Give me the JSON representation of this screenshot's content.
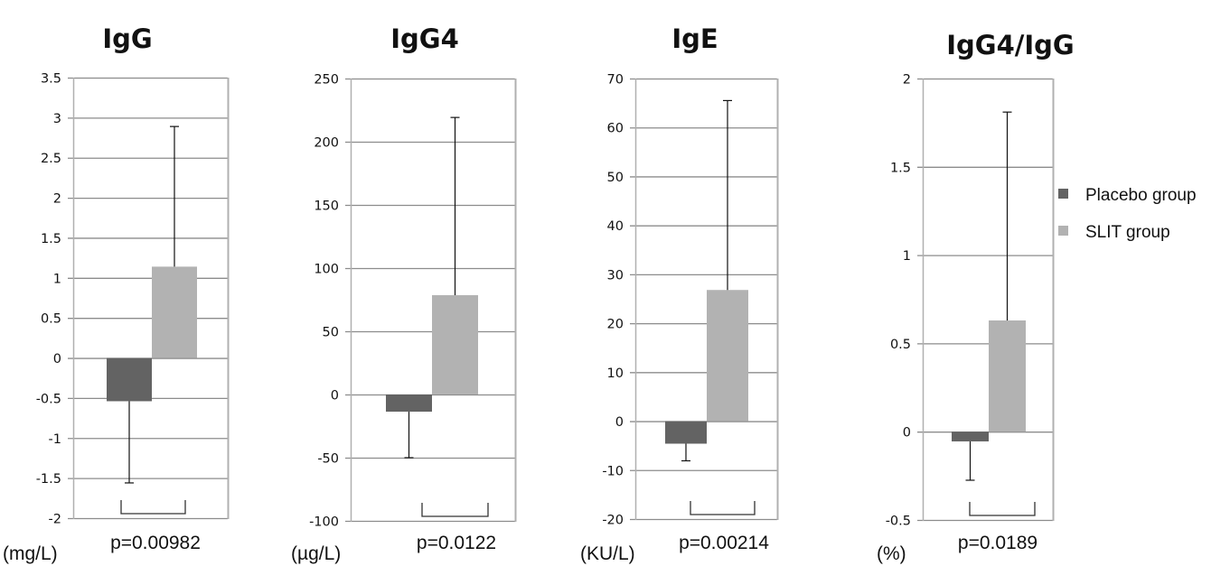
{
  "chart_data": [
    {
      "type": "bar",
      "title": "IgG",
      "unit_label": "(mg/L)",
      "p_value_label": "p=0.00982",
      "ylim": [
        -2,
        3.5
      ],
      "ytick_step": 0.5,
      "yticks": [
        "3.5",
        "3",
        "2.5",
        "2",
        "1.5",
        "1",
        "0.5",
        "0",
        "-0.5",
        "-1",
        "-1.5",
        "-2"
      ],
      "grid": true,
      "series": [
        {
          "name": "Placebo group",
          "value": -0.54,
          "error": 1.02
        },
        {
          "name": "SLIT group",
          "value": 1.14,
          "error": 1.75
        }
      ]
    },
    {
      "type": "bar",
      "title": "IgG4",
      "unit_label": "(µg/L)",
      "p_value_label": "p=0.0122",
      "ylim": [
        -100,
        250
      ],
      "ytick_step": 50,
      "yticks": [
        "250",
        "200",
        "150",
        "100",
        "50",
        "0",
        "-50",
        "-100"
      ],
      "grid": true,
      "series": [
        {
          "name": "Placebo group",
          "value": -13.6,
          "error": 36.4
        },
        {
          "name": "SLIT group",
          "value": 78.6,
          "error": 140.6
        }
      ]
    },
    {
      "type": "bar",
      "title": "IgE",
      "unit_label": "(KU/L)",
      "p_value_label": "p=0.00214",
      "ylim": [
        -20,
        70
      ],
      "ytick_step": 10,
      "yticks": [
        "70",
        "60",
        "50",
        "40",
        "30",
        "20",
        "10",
        "0",
        "-10",
        "-20"
      ],
      "grid": true,
      "series": [
        {
          "name": "Placebo group",
          "value": -4.6,
          "error": 3.5
        },
        {
          "name": "SLIT group",
          "value": 26.8,
          "error": 38.7
        }
      ]
    },
    {
      "type": "bar",
      "title": "IgG4/IgG",
      "unit_label": "(%)",
      "p_value_label": "p=0.0189",
      "ylim": [
        -0.5,
        2
      ],
      "ytick_step": 0.5,
      "yticks": [
        "2",
        "1.5",
        "1",
        "0.5",
        "0",
        "-0.5"
      ],
      "grid": true,
      "series": [
        {
          "name": "Placebo group",
          "value": -0.055,
          "error": 0.22
        },
        {
          "name": "SLIT group",
          "value": 0.63,
          "error": 1.18
        }
      ]
    }
  ],
  "legend": {
    "placement": "right",
    "items": [
      {
        "label": "Placebo group",
        "color": "#636363"
      },
      {
        "label": "SLIT group",
        "color": "#b2b2b2"
      }
    ]
  },
  "colors": {
    "placebo": "#636363",
    "slit": "#b2b2b2",
    "grid": "#8c8c8c",
    "frame": "#b0b0b0",
    "error": "#111111"
  }
}
